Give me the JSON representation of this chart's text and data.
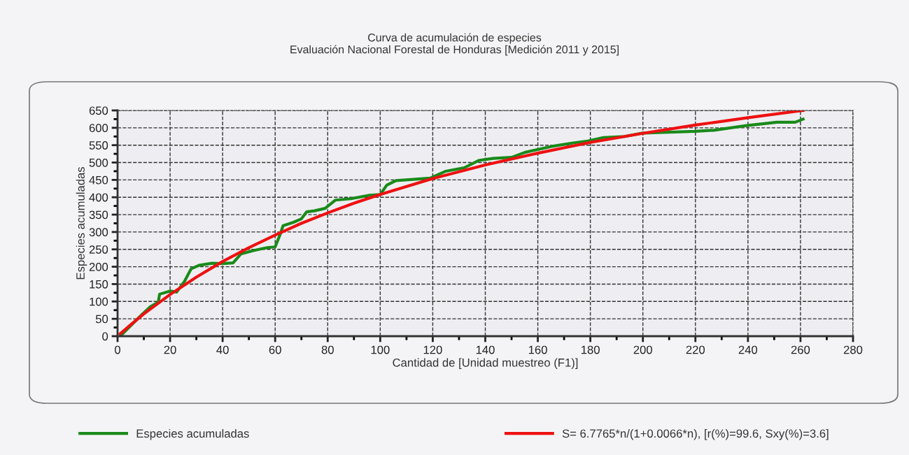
{
  "chart_data": {
    "type": "line",
    "title": "Curva de acumulación de especies",
    "subtitle": "Evaluación Nacional Forestal de Honduras [Medición 2011 y 2015]",
    "xlabel": "Cantidad de [Unidad muestreo (F1)]",
    "ylabel": "Especies acumuladas",
    "xlim": [
      0,
      280
    ],
    "xticks": [
      0,
      20,
      40,
      60,
      80,
      100,
      120,
      140,
      160,
      180,
      200,
      220,
      240,
      260,
      280
    ],
    "ylim": [
      0,
      650
    ],
    "yticks": [
      0,
      50,
      100,
      150,
      200,
      250,
      300,
      350,
      400,
      450,
      500,
      550,
      600,
      650
    ],
    "grid": true,
    "legend": "bottom",
    "line_style": "solid",
    "marker": "none",
    "series": [
      {
        "name": "Especies acumuladas",
        "color": "#1a8a1a",
        "x": [
          1,
          5,
          9.5,
          12.5,
          15.5,
          16,
          20,
          22.5,
          25.5,
          28,
          31,
          36,
          40,
          44,
          47,
          52,
          57,
          60,
          62,
          63,
          67,
          70,
          72,
          75,
          79,
          83,
          89,
          96,
          100,
          102.5,
          106,
          119,
          125,
          132,
          137.5,
          143,
          150,
          155,
          165,
          173,
          179,
          185,
          193,
          200,
          220,
          227,
          239,
          251,
          258,
          261
        ],
        "values": [
          0,
          30,
          64,
          85,
          98,
          121,
          130,
          127,
          158,
          194,
          204,
          210,
          209,
          211,
          237,
          247,
          255,
          257,
          295,
          318,
          328,
          338,
          358,
          361,
          368,
          392,
          396,
          406,
          408,
          435,
          448,
          455,
          475,
          485,
          506,
          512,
          515,
          529,
          546,
          556,
          562,
          572,
          575,
          585,
          590,
          593,
          606,
          616,
          616,
          625
        ]
      },
      {
        "name": "S= 6.7765*n/(1+0.0066*n), [r(%)=99.6, Sxy(%)=3.6]",
        "color": "#ee1111",
        "x": [
          1,
          5,
          10,
          20,
          30,
          40,
          50,
          60,
          70,
          80,
          90,
          100,
          120,
          140,
          160,
          180,
          200,
          220,
          240,
          261
        ],
        "values": [
          7,
          33,
          64,
          120,
          170,
          215,
          255,
          291,
          325,
          355,
          383,
          408,
          454,
          493,
          527,
          558,
          584,
          608,
          629,
          650
        ]
      }
    ]
  }
}
